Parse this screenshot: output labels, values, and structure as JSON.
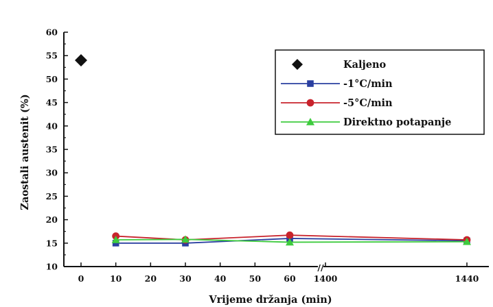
{
  "chart_data": {
    "type": "line",
    "title": "",
    "xlabel": "Vrijeme držanja (min)",
    "ylabel": "Zaostali austenit (%)",
    "ylim": [
      10,
      60
    ],
    "yticks": [
      "10",
      "15",
      "20",
      "25",
      "30",
      "35",
      "40",
      "45",
      "50",
      "55",
      "60"
    ],
    "xticks": [
      "0",
      "10",
      "20",
      "30",
      "40",
      "50",
      "60",
      "1400",
      "1440"
    ],
    "axis_break": "//",
    "grid": false,
    "legend_position": "top-right",
    "series": [
      {
        "name": "Kaljeno",
        "marker": "diamond",
        "color": "#111111",
        "line": false,
        "points": [
          {
            "x": 0,
            "y": 54
          }
        ]
      },
      {
        "name": "-1°C/min",
        "marker": "square",
        "color": "#2a3fa0",
        "line": true,
        "points": [
          {
            "x": 10,
            "y": 15
          },
          {
            "x": 30,
            "y": 15
          },
          {
            "x": 60,
            "y": 16
          },
          {
            "x": 1440,
            "y": 15.5
          }
        ]
      },
      {
        "name": "-5°C/min",
        "marker": "circle",
        "color": "#c8232c",
        "line": true,
        "points": [
          {
            "x": 10,
            "y": 16.5
          },
          {
            "x": 30,
            "y": 15.7
          },
          {
            "x": 60,
            "y": 16.7
          },
          {
            "x": 1440,
            "y": 15.7
          }
        ]
      },
      {
        "name": "Direktno potapanje",
        "marker": "triangle",
        "color": "#3ecb3e",
        "line": true,
        "points": [
          {
            "x": 10,
            "y": 15.7
          },
          {
            "x": 30,
            "y": 15.8
          },
          {
            "x": 60,
            "y": 15.2
          },
          {
            "x": 1440,
            "y": 15.3
          }
        ]
      }
    ]
  }
}
